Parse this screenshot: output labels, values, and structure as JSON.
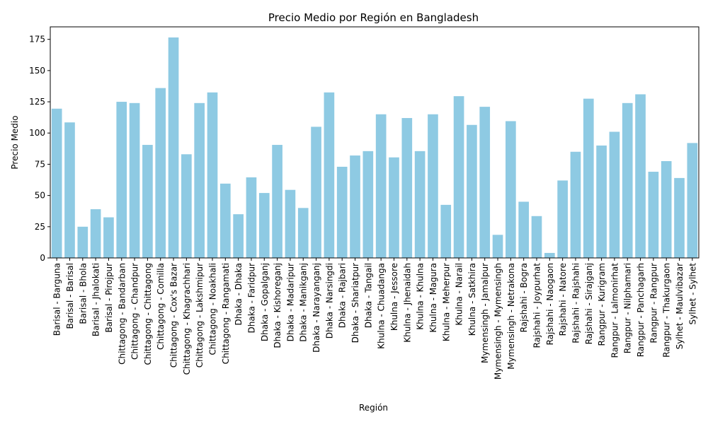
{
  "chart_data": {
    "type": "bar",
    "title": "Precio Medio por Región en Bangladesh",
    "xlabel": "Región",
    "ylabel": "Precio Medio",
    "ylim": [
      0,
      185
    ],
    "yticks": [
      0,
      25,
      50,
      75,
      100,
      125,
      150,
      175
    ],
    "grid": false,
    "bar_color": "#8ecae3",
    "categories": [
      "Barisal - Barguna",
      "Barisal - Barisal",
      "Barisal - Bhola",
      "Barisal - Jhalokati",
      "Barisal - Pirojpur",
      "Chittagong - Bandarban",
      "Chittagong - Chandpur",
      "Chittagong - Chittagong",
      "Chittagong - Comilla",
      "Chittagong - Cox's Bazar",
      "Chittagong - Khagrachhari",
      "Chittagong - Lakshmipur",
      "Chittagong - Noakhali",
      "Chittagong - Rangamati",
      "Dhaka - Dhaka",
      "Dhaka - Faridpur",
      "Dhaka - Gopalganj",
      "Dhaka - Kishoreganj",
      "Dhaka - Madaripur",
      "Dhaka - Manikganj",
      "Dhaka - Narayanganj",
      "Dhaka - Narsingdi",
      "Dhaka - Rajbari",
      "Dhaka - Shariatpur",
      "Dhaka - Tangail",
      "Khulna - Chuadanga",
      "Khulna - Jessore",
      "Khulna - Jhenaidah",
      "Khulna - Khulna",
      "Khulna - Magura",
      "Khulna - Meherpur",
      "Khulna - Narail",
      "Khulna - Satkhira",
      "Mymensingh - Jamalpur",
      "Mymensingh - Mymensingh",
      "Mymensingh - Netrakona",
      "Rajshahi - Bogra",
      "Rajshahi - Joypurhat",
      "Rajshahi - Naogaon",
      "Rajshahi - Natore",
      "Rajshahi - Rajshahi",
      "Rajshahi - Sirajganj",
      "Rangpur - Kurigram",
      "Rangpur - Lalmonirhat",
      "Rangpur - Nilphamari",
      "Rangpur - Panchagarh",
      "Rangpur - Rangpur",
      "Rangpur - Thakurgaon",
      "Sylhet - Maulvibazar",
      "Sylhet - Sylhet"
    ],
    "values": [
      119.5,
      108.5,
      25,
      39,
      32.5,
      125,
      124,
      90.5,
      136,
      176.5,
      83,
      124,
      132.5,
      59.5,
      35,
      64.5,
      52,
      90.5,
      54.5,
      40,
      105,
      132.5,
      73,
      82,
      85.5,
      115,
      80.5,
      112,
      85.5,
      115,
      42.5,
      129.5,
      106.5,
      121,
      18.5,
      109.5,
      45,
      33.5,
      4,
      62,
      85,
      127.5,
      90,
      101,
      124,
      131,
      69,
      77.5,
      64,
      92
    ]
  }
}
